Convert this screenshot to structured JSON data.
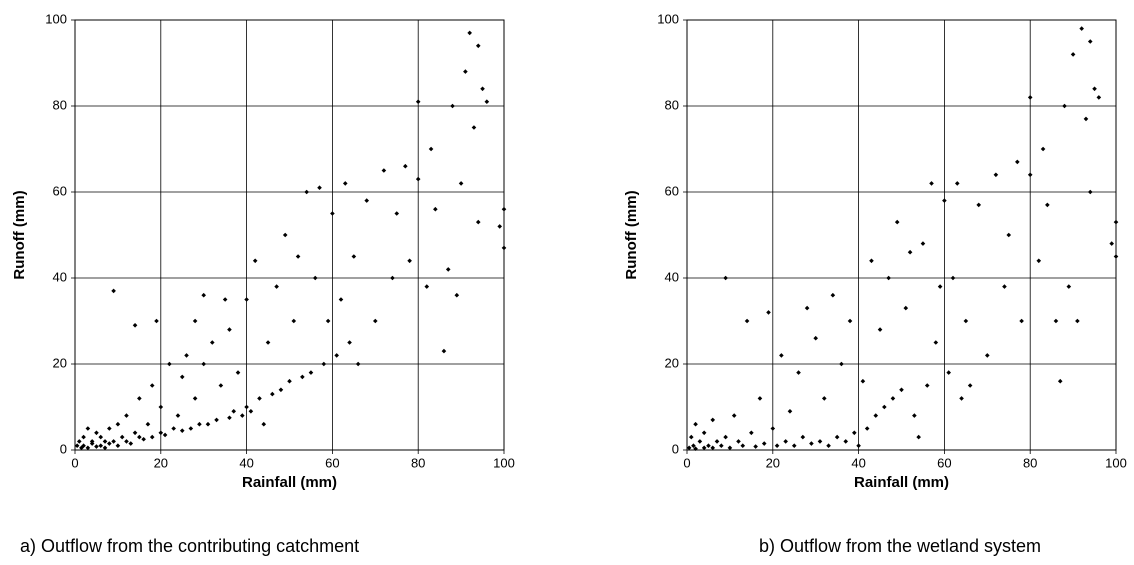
{
  "chart_data": [
    {
      "type": "scatter",
      "caption": "a) Outflow from the contributing catchment",
      "xlabel": "Rainfall (mm)",
      "ylabel": "Runoff (mm)",
      "xlim": [
        0,
        100
      ],
      "ylim": [
        0,
        100
      ],
      "xticks": [
        0,
        20,
        40,
        60,
        80,
        100
      ],
      "yticks": [
        0,
        20,
        40,
        60,
        80,
        100
      ],
      "grid": true,
      "color": "#000000",
      "x": [
        0.5,
        1,
        1.5,
        2,
        2,
        3,
        3,
        4,
        4,
        5,
        5,
        6,
        6,
        7,
        7,
        8,
        8,
        9,
        9,
        10,
        10,
        11,
        12,
        12,
        13,
        14,
        14,
        15,
        15,
        16,
        17,
        18,
        18,
        19,
        20,
        20,
        21,
        22,
        23,
        24,
        25,
        25,
        26,
        27,
        28,
        28,
        29,
        30,
        30,
        31,
        32,
        33,
        34,
        35,
        36,
        36,
        37,
        38,
        39,
        40,
        40,
        41,
        42,
        43,
        44,
        45,
        46,
        47,
        48,
        49,
        50,
        51,
        52,
        53,
        54,
        55,
        56,
        57,
        58,
        59,
        60,
        61,
        62,
        63,
        64,
        65,
        66,
        68,
        70,
        72,
        74,
        75,
        77,
        78,
        80,
        80,
        82,
        83,
        84,
        86,
        87,
        88,
        89,
        90,
        91,
        92,
        93,
        94,
        94,
        95,
        96,
        100,
        100,
        99
      ],
      "values": [
        1,
        2,
        0.5,
        3,
        1,
        0.5,
        5,
        1.5,
        2,
        0.8,
        4,
        1,
        3,
        2,
        0.5,
        1.5,
        5,
        37,
        2,
        1,
        6,
        3,
        2,
        8,
        1.5,
        4,
        29,
        3,
        12,
        2.5,
        6,
        3,
        15,
        30,
        4,
        10,
        3.5,
        20,
        5,
        8,
        4.5,
        17,
        22,
        5,
        12,
        30,
        6,
        20,
        36,
        6,
        25,
        7,
        15,
        35,
        7.5,
        28,
        9,
        18,
        8,
        10,
        35,
        9,
        44,
        12,
        6,
        25,
        13,
        38,
        14,
        50,
        16,
        30,
        45,
        17,
        60,
        18,
        40,
        61,
        20,
        30,
        55,
        22,
        35,
        62,
        25,
        45,
        20,
        58,
        30,
        65,
        40,
        55,
        66,
        44,
        81,
        63,
        38,
        70,
        56,
        23,
        42,
        80,
        36,
        62,
        88,
        97,
        75,
        53,
        94,
        84,
        81,
        56,
        47,
        52
      ]
    },
    {
      "type": "scatter",
      "caption": "b) Outflow from the wetland system",
      "xlabel": "Rainfall (mm)",
      "ylabel": "Runoff (mm)",
      "xlim": [
        0,
        100
      ],
      "ylim": [
        0,
        100
      ],
      "xticks": [
        0,
        20,
        40,
        60,
        80,
        100
      ],
      "yticks": [
        0,
        20,
        40,
        60,
        80,
        100
      ],
      "grid": true,
      "color": "#000000",
      "x": [
        0.5,
        1,
        1.5,
        2,
        2,
        3,
        4,
        4,
        5,
        6,
        6,
        7,
        8,
        9,
        9,
        10,
        11,
        12,
        13,
        14,
        15,
        16,
        17,
        18,
        19,
        20,
        21,
        22,
        23,
        24,
        25,
        26,
        27,
        28,
        29,
        30,
        31,
        32,
        33,
        34,
        35,
        36,
        37,
        38,
        39,
        40,
        41,
        42,
        43,
        44,
        45,
        46,
        47,
        48,
        49,
        50,
        51,
        52,
        53,
        54,
        55,
        56,
        57,
        58,
        59,
        60,
        61,
        62,
        63,
        64,
        65,
        66,
        68,
        70,
        72,
        74,
        75,
        77,
        78,
        80,
        80,
        82,
        83,
        84,
        86,
        87,
        88,
        89,
        90,
        91,
        92,
        93,
        94,
        94,
        95,
        96,
        100,
        100,
        99
      ],
      "values": [
        0.5,
        3,
        1,
        6,
        0.3,
        2,
        0.5,
        4,
        1,
        7,
        0.5,
        2,
        1,
        40,
        3,
        0.5,
        8,
        2,
        1,
        30,
        4,
        0.8,
        12,
        1.5,
        32,
        5,
        1,
        22,
        2,
        9,
        1,
        18,
        3,
        33,
        1.5,
        26,
        2,
        12,
        1,
        36,
        3,
        20,
        2,
        30,
        4,
        1,
        16,
        5,
        44,
        8,
        28,
        10,
        40,
        12,
        53,
        14,
        33,
        46,
        8,
        3,
        48,
        15,
        62,
        25,
        38,
        58,
        18,
        40,
        62,
        12,
        30,
        15,
        57,
        22,
        64,
        38,
        50,
        67,
        30,
        82,
        64,
        44,
        70,
        57,
        30,
        16,
        80,
        38,
        92,
        30,
        98,
        77,
        60,
        95,
        84,
        82,
        53,
        45,
        48
      ]
    }
  ]
}
